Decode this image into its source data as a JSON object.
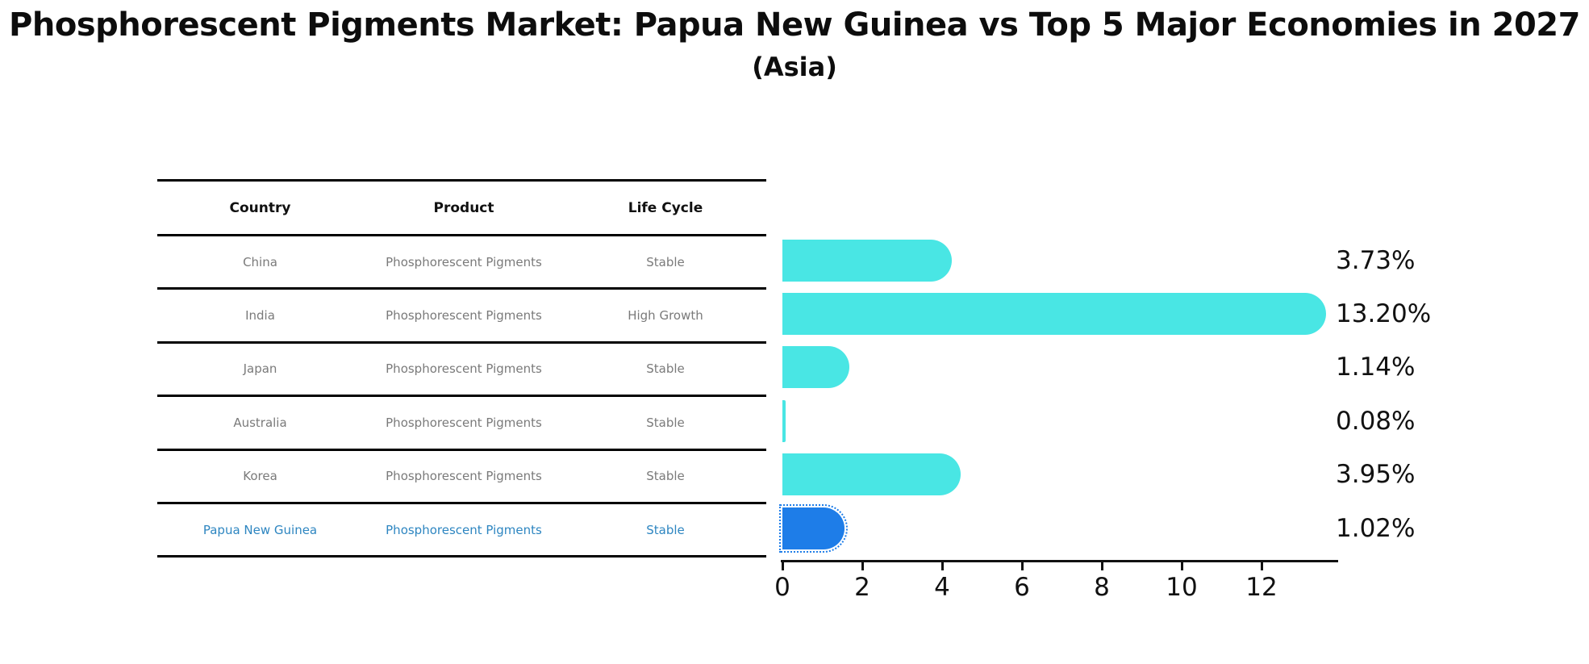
{
  "header": {
    "title": "Phosphorescent Pigments Market: Papua New Guinea vs Top 5 Major Economies in 2027",
    "subtitle": "(Asia)"
  },
  "table": {
    "columns": [
      "Country",
      "Product",
      "Life Cycle"
    ],
    "rows": [
      {
        "country": "China",
        "product": "Phosphorescent Pigments",
        "life_cycle": "Stable"
      },
      {
        "country": "India",
        "product": "Phosphorescent Pigments",
        "life_cycle": "High Growth"
      },
      {
        "country": "Japan",
        "product": "Phosphorescent Pigments",
        "life_cycle": "Stable"
      },
      {
        "country": "Australia",
        "product": "Phosphorescent Pigments",
        "life_cycle": "Stable"
      },
      {
        "country": "Korea",
        "product": "Phosphorescent Pigments",
        "life_cycle": "Stable"
      },
      {
        "country": "Papua New Guinea",
        "product": "Phosphorescent Pigments",
        "life_cycle": "Stable"
      }
    ]
  },
  "chart_data": {
    "type": "bar",
    "orientation": "horizontal",
    "title": "Phosphorescent Pigments Market: Papua New Guinea vs Top 5 Major Economies in 2027",
    "subtitle": "(Asia)",
    "categories": [
      "China",
      "India",
      "Japan",
      "Australia",
      "Korea",
      "Papua New Guinea"
    ],
    "values": [
      3.73,
      13.2,
      1.14,
      0.08,
      3.95,
      1.02
    ],
    "value_labels": [
      "3.73%",
      "13.20%",
      "1.14%",
      "0.08%",
      "3.95%",
      "1.02%"
    ],
    "x_ticks": [
      0,
      2,
      4,
      6,
      8,
      10,
      12
    ],
    "xlim": [
      0,
      14
    ],
    "grid": false,
    "legend": false,
    "highlight_index": 5
  },
  "colors": {
    "bar_cyan": "#49E6E4",
    "bar_blue": "#1E7DE8",
    "highlight_text": "#2E86C1",
    "cell_text": "#7a7a7a",
    "ink": "#0d0d0d"
  }
}
